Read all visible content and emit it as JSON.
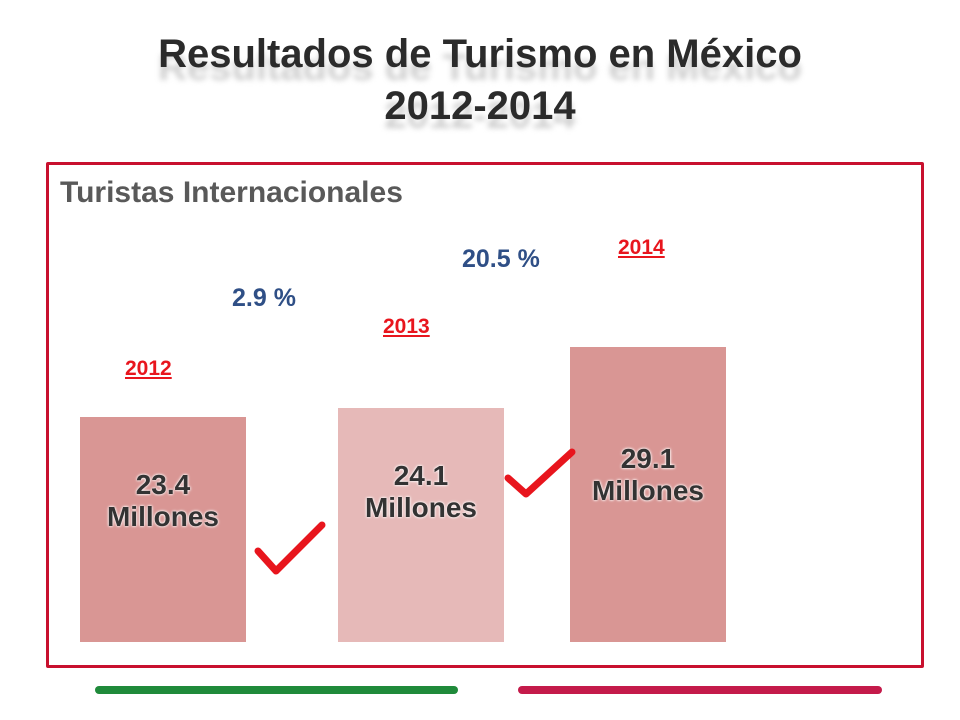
{
  "title": {
    "line1": "Resultados de Turismo en México",
    "line2": "2012-2014"
  },
  "subtitle": "Turistas Internacionales",
  "chart_data": {
    "type": "bar",
    "categories": [
      "2012",
      "2013",
      "2014"
    ],
    "values": [
      23.4,
      24.1,
      29.1
    ],
    "value_labels": [
      {
        "num": "23.4",
        "unit": "Millones"
      },
      {
        "num": "24.1",
        "unit": "Millones"
      },
      {
        "num": "29.1",
        "unit": "Millones"
      }
    ],
    "growth_labels": [
      "2.9 %",
      "20.5 %"
    ],
    "bar_colors": [
      "#d99694",
      "#e6b9b8",
      "#d99694"
    ],
    "year_color": "#e8151d",
    "growth_color": "#2f4f86",
    "check_color": "#e8151d"
  },
  "footer": {
    "left_color": "#1f8a3a",
    "right_color": "#c41a4a"
  }
}
